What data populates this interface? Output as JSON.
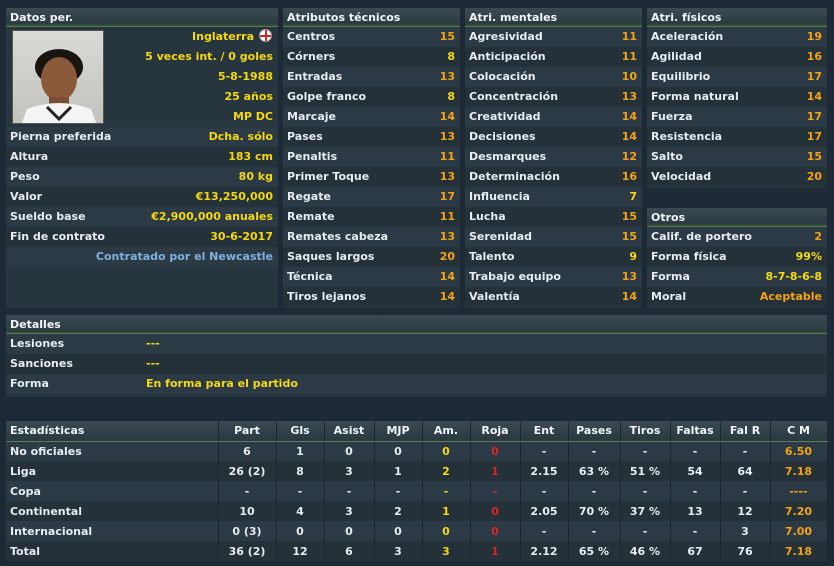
{
  "personal": {
    "header": "Datos per.",
    "nationality": "Inglaterra",
    "caps": "5 veces int. / 0 goles",
    "birthdate": "5-8-1988",
    "age": "25 años",
    "position": "MP DC",
    "rows": [
      {
        "label": "Pierna preferida",
        "value": "Dcha. sólo"
      },
      {
        "label": "Altura",
        "value": "183 cm"
      },
      {
        "label": "Peso",
        "value": "80 kg"
      },
      {
        "label": "Valor",
        "value": "€13,250,000"
      },
      {
        "label": "Sueldo base",
        "value": "€2,900,000 anuales"
      },
      {
        "label": "Fin de contrato",
        "value": "30-6-2017"
      }
    ],
    "contract_note": "Contratado por el Newcastle"
  },
  "technical": {
    "header": "Atributos técnicos",
    "rows": [
      {
        "label": "Centros",
        "value": "15"
      },
      {
        "label": "Córners",
        "value": "8"
      },
      {
        "label": "Entradas",
        "value": "13"
      },
      {
        "label": "Golpe franco",
        "value": "8"
      },
      {
        "label": "Marcaje",
        "value": "14"
      },
      {
        "label": "Pases",
        "value": "13"
      },
      {
        "label": "Penaltis",
        "value": "11"
      },
      {
        "label": "Primer Toque",
        "value": "13"
      },
      {
        "label": "Regate",
        "value": "17"
      },
      {
        "label": "Remate",
        "value": "11"
      },
      {
        "label": "Remates cabeza",
        "value": "13"
      },
      {
        "label": "Saques largos",
        "value": "20"
      },
      {
        "label": "Técnica",
        "value": "14"
      },
      {
        "label": "Tiros lejanos",
        "value": "14"
      }
    ]
  },
  "mental": {
    "header": "Atri. mentales",
    "rows": [
      {
        "label": "Agresividad",
        "value": "11"
      },
      {
        "label": "Anticipación",
        "value": "11"
      },
      {
        "label": "Colocación",
        "value": "10"
      },
      {
        "label": "Concentración",
        "value": "13"
      },
      {
        "label": "Creatividad",
        "value": "14"
      },
      {
        "label": "Decisiones",
        "value": "14"
      },
      {
        "label": "Desmarques",
        "value": "12"
      },
      {
        "label": "Determinación",
        "value": "16"
      },
      {
        "label": "Influencia",
        "value": "7"
      },
      {
        "label": "Lucha",
        "value": "15"
      },
      {
        "label": "Serenidad",
        "value": "15"
      },
      {
        "label": "Talento",
        "value": "9"
      },
      {
        "label": "Trabajo equipo",
        "value": "13"
      },
      {
        "label": "Valentía",
        "value": "14"
      }
    ]
  },
  "physical": {
    "header": "Atri. físicos",
    "rows": [
      {
        "label": "Aceleración",
        "value": "19"
      },
      {
        "label": "Agilidad",
        "value": "16"
      },
      {
        "label": "Equilibrio",
        "value": "17"
      },
      {
        "label": "Forma natural",
        "value": "14"
      },
      {
        "label": "Fuerza",
        "value": "17"
      },
      {
        "label": "Resistencia",
        "value": "17"
      },
      {
        "label": "Salto",
        "value": "15"
      },
      {
        "label": "Velocidad",
        "value": "20"
      }
    ]
  },
  "others": {
    "header": "Otros",
    "rows": [
      {
        "label": "Calif. de portero",
        "value": "2"
      },
      {
        "label": "Forma física",
        "value": "99%"
      },
      {
        "label": "Forma",
        "value": "8-7-8-6-8"
      },
      {
        "label": "Moral",
        "value": "Aceptable"
      }
    ]
  },
  "details": {
    "header": "Detalles",
    "rows": [
      {
        "label": "Lesiones",
        "value": "---"
      },
      {
        "label": "Sanciones",
        "value": "---"
      },
      {
        "label": "Forma",
        "value": "En forma para el partido"
      }
    ]
  },
  "stats": {
    "columns": [
      "Estadísticas",
      "Part",
      "Gls",
      "Asist",
      "MJP",
      "Am.",
      "Roja",
      "Ent",
      "Pases",
      "Tiros",
      "Faltas",
      "Fal R",
      "C M"
    ],
    "rows": [
      [
        "No oficiales",
        "6",
        "1",
        "0",
        "0",
        "0",
        "0",
        "-",
        "-",
        "-",
        "-",
        "-",
        "6.50"
      ],
      [
        "Liga",
        "26 (2)",
        "8",
        "3",
        "1",
        "2",
        "1",
        "2.15",
        "63 %",
        "51 %",
        "54",
        "64",
        "7.18"
      ],
      [
        "Copa",
        "-",
        "-",
        "-",
        "-",
        "-",
        "-",
        "-",
        "-",
        "-",
        "-",
        "-",
        "----"
      ],
      [
        "Continental",
        "10",
        "4",
        "3",
        "2",
        "1",
        "0",
        "2.05",
        "70 %",
        "37 %",
        "13",
        "12",
        "7.20"
      ],
      [
        "Internacional",
        "0 (3)",
        "0",
        "0",
        "0",
        "0",
        "0",
        "-",
        "-",
        "-",
        "-",
        "3",
        "7.00"
      ],
      [
        "Total",
        "36 (2)",
        "12",
        "6",
        "3",
        "3",
        "1",
        "2.12",
        "65 %",
        "46 %",
        "67",
        "76",
        "7.18"
      ]
    ]
  },
  "colors": {
    "value_yellow": "#f5d90e",
    "value_orange": "#f5a313",
    "red_card": "#e02424",
    "link_blue": "#7fb1de",
    "header_border": "#5a7e55"
  }
}
